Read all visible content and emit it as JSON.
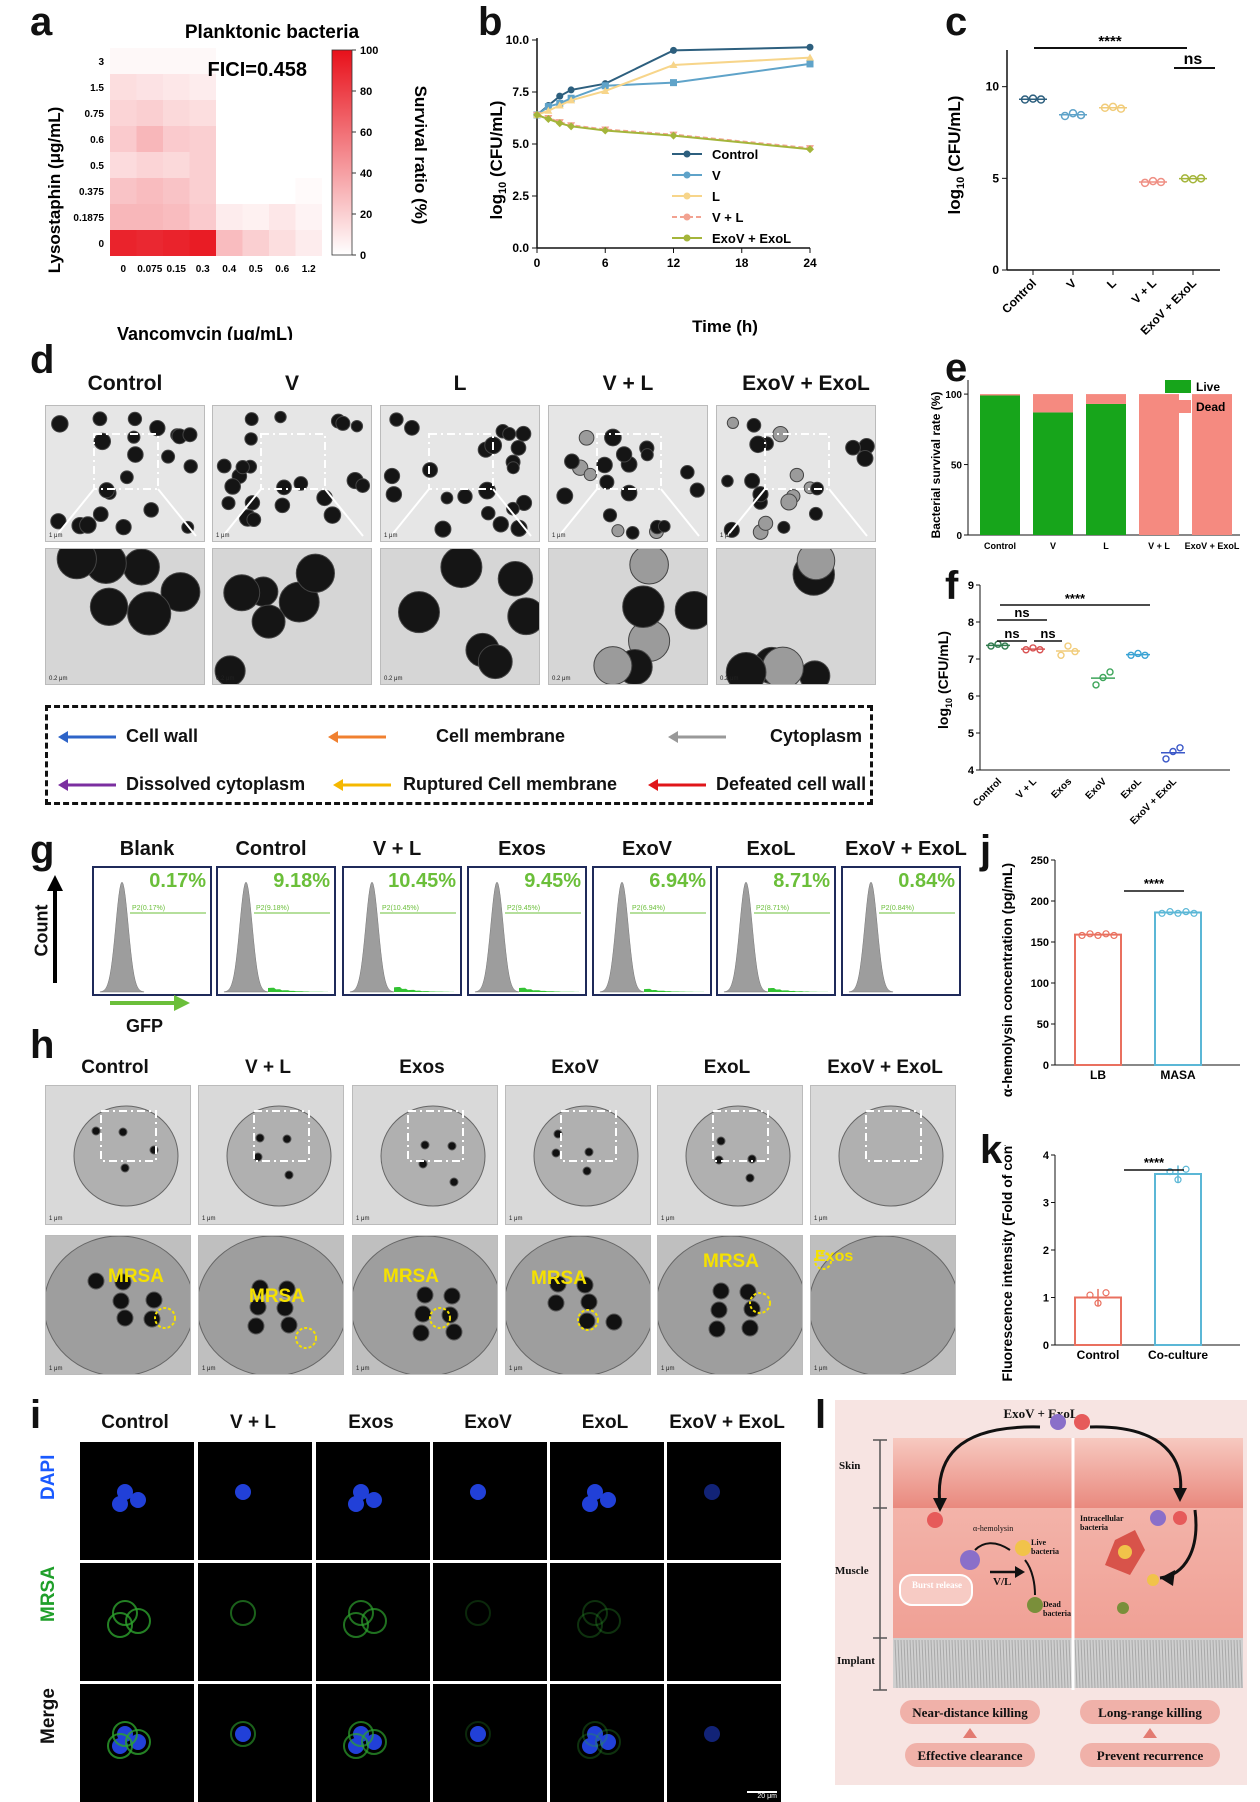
{
  "panel_letters": {
    "a": "a",
    "b": "b",
    "c": "c",
    "d": "d",
    "e": "e",
    "f": "f",
    "g": "g",
    "h": "h",
    "i": "i",
    "j": "j",
    "k": "k",
    "l": "l"
  },
  "panel_a": {
    "title": "Planktonic bacteria",
    "fici": "FICI=0.458",
    "ylabel": "Lysostaphin (μg/mL)",
    "xlabel": "Vancomycin (μg/mL)",
    "colorbar_label": "Survival ratio (%)",
    "colorbar_ticks": [
      "100",
      "80",
      "60",
      "40",
      "20",
      "0"
    ],
    "y_ticks": [
      "3",
      "1.5",
      "0.75",
      "0.6",
      "0.5",
      "0.375",
      "0.1875",
      "0"
    ],
    "x_ticks": [
      "0",
      "0.075",
      "0.15",
      "0.3",
      "0.4",
      "0.5",
      "0.6",
      "1.2"
    ],
    "accent": "#e8101a"
  },
  "panel_b": {
    "ylabel": "log10 (CFU/mL)",
    "xlabel": "Time (h)",
    "y_ticks": [
      "0.0",
      "2.5",
      "5.0",
      "7.5",
      "10.0"
    ],
    "x_ticks": [
      "0",
      "6",
      "12",
      "18",
      "24"
    ],
    "legend": [
      "Control",
      "V",
      "L",
      "V + L",
      "ExoV + ExoL"
    ]
  },
  "panel_c": {
    "ylabel": "log10 (CFU/mL)",
    "y_ticks": [
      "0",
      "5",
      "10"
    ],
    "categories": [
      "Control",
      "V",
      "L",
      "V + L",
      "ExoV + ExoL"
    ],
    "sig1": "****",
    "sig2": "ns"
  },
  "panel_d": {
    "columns": [
      "Control",
      "V",
      "L",
      "V + L",
      "ExoV + ExoL"
    ],
    "legend": {
      "cell_wall": "Cell wall",
      "cell_membrane": "Cell membrane",
      "cytoplasm": "Cytoplasm",
      "dissolved": "Dissolved cytoplasm",
      "ruptured": "Ruptured Cell membrane",
      "defeated": "Defeated cell wall"
    },
    "scale_top": "1 μm",
    "scale_bottom": "0.2 μm"
  },
  "panel_e": {
    "ylabel": "Bacterial survival rate (%)",
    "categories": [
      "Control",
      "V",
      "L",
      "V + L",
      "ExoV + ExoL"
    ],
    "legend_live": "Live",
    "legend_dead": "Dead",
    "y_ticks": [
      "0",
      "50",
      "100"
    ]
  },
  "panel_f": {
    "ylabel": "log10 (CFU/mL)",
    "y_ticks": [
      "4",
      "5",
      "6",
      "7",
      "8",
      "9"
    ],
    "categories": [
      "Control",
      "V + L",
      "Exos",
      "ExoV",
      "ExoL",
      "ExoV + ExoL"
    ],
    "sig": [
      "ns",
      "ns",
      "ns",
      "****"
    ]
  },
  "panel_g": {
    "columns": [
      "Blank",
      "Control",
      "V + L",
      "Exos",
      "ExoV",
      "ExoL",
      "ExoV + ExoL"
    ],
    "percents": [
      "0.17%",
      "9.18%",
      "10.45%",
      "9.45%",
      "6.94%",
      "8.71%",
      "0.84%"
    ],
    "gates": [
      "P2(0.17%)",
      "P2(9.18%)",
      "P2(10.45%)",
      "P2(9.45%)",
      "P2(6.94%)",
      "P2(8.71%)",
      "P2(0.84%)"
    ],
    "ylabel": "Count",
    "xlabel": "GFP"
  },
  "panel_h": {
    "columns": [
      "Control",
      "V + L",
      "Exos",
      "ExoV",
      "ExoL",
      "ExoV + ExoL"
    ],
    "labels": [
      "MRSA",
      "MRSA",
      "MRSA",
      "MRSA",
      "MRSA",
      "Exos"
    ],
    "scale": "1 μm"
  },
  "panel_i": {
    "columns": [
      "Control",
      "V + L",
      "Exos",
      "ExoV",
      "ExoL",
      "ExoV + ExoL"
    ],
    "rows": [
      "DAPI",
      "MRSA",
      "Merge"
    ],
    "scale": "20 μm"
  },
  "panel_j": {
    "ylabel": "α-hemolysin concentration (pg/mL)",
    "y_ticks": [
      "0",
      "50",
      "100",
      "150",
      "200",
      "250"
    ],
    "categories": [
      "LB",
      "MASA"
    ],
    "sig": "****"
  },
  "panel_k": {
    "ylabel": "Fluorescence intensity (Fold of control)",
    "y_ticks": [
      "0",
      "1",
      "2",
      "3",
      "4"
    ],
    "categories": [
      "Control",
      "Co-culture"
    ],
    "sig": "****"
  },
  "panel_l": {
    "top": "ExoV + ExoL",
    "layers": [
      "Skin",
      "Muscle",
      "Implant"
    ],
    "hemolysin": "α-hemolysin",
    "live": "Live bacteria",
    "vl": "V/L",
    "burst": "Burst release",
    "dead": "Dead bacteria",
    "intracellular": "Intracellular bacteria",
    "near": "Near-distance killing",
    "long": "Long-range killing",
    "effective": "Effective clearance",
    "prevent": "Prevent recurrence"
  },
  "chart_data": [
    {
      "type": "heatmap",
      "title": "Planktonic bacteria",
      "xlabel": "Vancomycin (μg/mL)",
      "ylabel": "Lysostaphin (μg/mL)",
      "x": [
        "0",
        "0.075",
        "0.15",
        "0.3",
        "0.4",
        "0.5",
        "0.6",
        "1.2"
      ],
      "y": [
        "3",
        "1.5",
        "0.75",
        "0.6",
        "0.5",
        "0.375",
        "0.1875",
        "0"
      ],
      "values": [
        [
          3,
          3,
          3,
          3,
          0,
          0,
          0,
          0
        ],
        [
          14,
          12,
          10,
          8,
          0,
          0,
          0,
          0
        ],
        [
          18,
          20,
          16,
          14,
          0,
          0,
          0,
          0
        ],
        [
          22,
          30,
          22,
          20,
          0,
          0,
          0,
          0
        ],
        [
          15,
          18,
          16,
          20,
          0,
          0,
          0,
          0
        ],
        [
          25,
          28,
          25,
          20,
          0,
          0,
          0,
          2
        ],
        [
          30,
          30,
          28,
          22,
          8,
          6,
          10,
          5
        ],
        [
          92,
          90,
          92,
          95,
          28,
          20,
          14,
          8
        ]
      ],
      "zlim": [
        0,
        100
      ],
      "annotation": "FICI=0.458"
    },
    {
      "type": "line",
      "xlabel": "Time (h)",
      "ylabel": "log10 (CFU/mL)",
      "xlim": [
        0,
        24
      ],
      "ylim": [
        0,
        10
      ],
      "x": [
        0,
        1,
        2,
        3,
        6,
        12,
        24
      ],
      "series": [
        {
          "name": "Control",
          "values": [
            6.4,
            6.85,
            7.3,
            7.6,
            7.9,
            9.5,
            9.65
          ]
        },
        {
          "name": "V",
          "values": [
            6.4,
            6.8,
            6.95,
            7.2,
            7.8,
            7.95,
            8.85
          ]
        },
        {
          "name": "L",
          "values": [
            6.4,
            6.6,
            6.85,
            7.1,
            7.55,
            8.8,
            9.15
          ]
        },
        {
          "name": "V + L",
          "values": [
            6.4,
            6.25,
            6.05,
            5.9,
            5.7,
            5.45,
            4.8
          ]
        },
        {
          "name": "ExoV + ExoL",
          "values": [
            6.4,
            6.2,
            6.0,
            5.85,
            5.65,
            5.4,
            4.75
          ]
        }
      ]
    },
    {
      "type": "scatter",
      "ylabel": "log10 (CFU/mL)",
      "categories": [
        "Control",
        "V",
        "L",
        "V + L",
        "ExoV + ExoL"
      ],
      "values": [
        [
          9.3,
          9.35,
          9.3
        ],
        [
          8.4,
          8.55,
          8.45
        ],
        [
          8.85,
          8.9,
          8.8
        ],
        [
          4.75,
          4.85,
          4.8
        ],
        [
          5.0,
          4.95,
          5.0
        ]
      ],
      "ylim": [
        0,
        12
      ]
    },
    {
      "type": "bar",
      "ylabel": "Bacterial survival rate (%)",
      "categories": [
        "Control",
        "V",
        "L",
        "V + L",
        "ExoV + ExoL"
      ],
      "series": [
        {
          "name": "Live",
          "values": [
            99,
            87,
            93,
            0,
            0
          ]
        },
        {
          "name": "Dead",
          "values": [
            1,
            13,
            7,
            100,
            100
          ]
        }
      ],
      "ylim": [
        0,
        110
      ]
    },
    {
      "type": "scatter",
      "ylabel": "log10 (CFU/mL)",
      "categories": [
        "Control",
        "V + L",
        "Exos",
        "ExoV",
        "ExoL",
        "ExoV + ExoL"
      ],
      "values": [
        [
          7.35,
          7.4,
          7.35
        ],
        [
          7.25,
          7.3,
          7.25
        ],
        [
          7.1,
          7.35,
          7.2
        ],
        [
          6.3,
          6.5,
          6.65
        ],
        [
          7.1,
          7.15,
          7.1
        ],
        [
          4.3,
          4.5,
          4.6
        ]
      ],
      "ylim": [
        4,
        9
      ]
    },
    {
      "type": "bar",
      "ylabel": "α-hemolysin concentration (pg/mL)",
      "categories": [
        "LB",
        "MASA"
      ],
      "values": [
        159,
        186
      ],
      "ylim": [
        0,
        250
      ]
    },
    {
      "type": "bar",
      "ylabel": "Fluorescence intensity (Fold of control)",
      "categories": [
        "Control",
        "Co-culture"
      ],
      "values": [
        1.0,
        3.6
      ],
      "ylim": [
        0,
        4
      ]
    }
  ]
}
